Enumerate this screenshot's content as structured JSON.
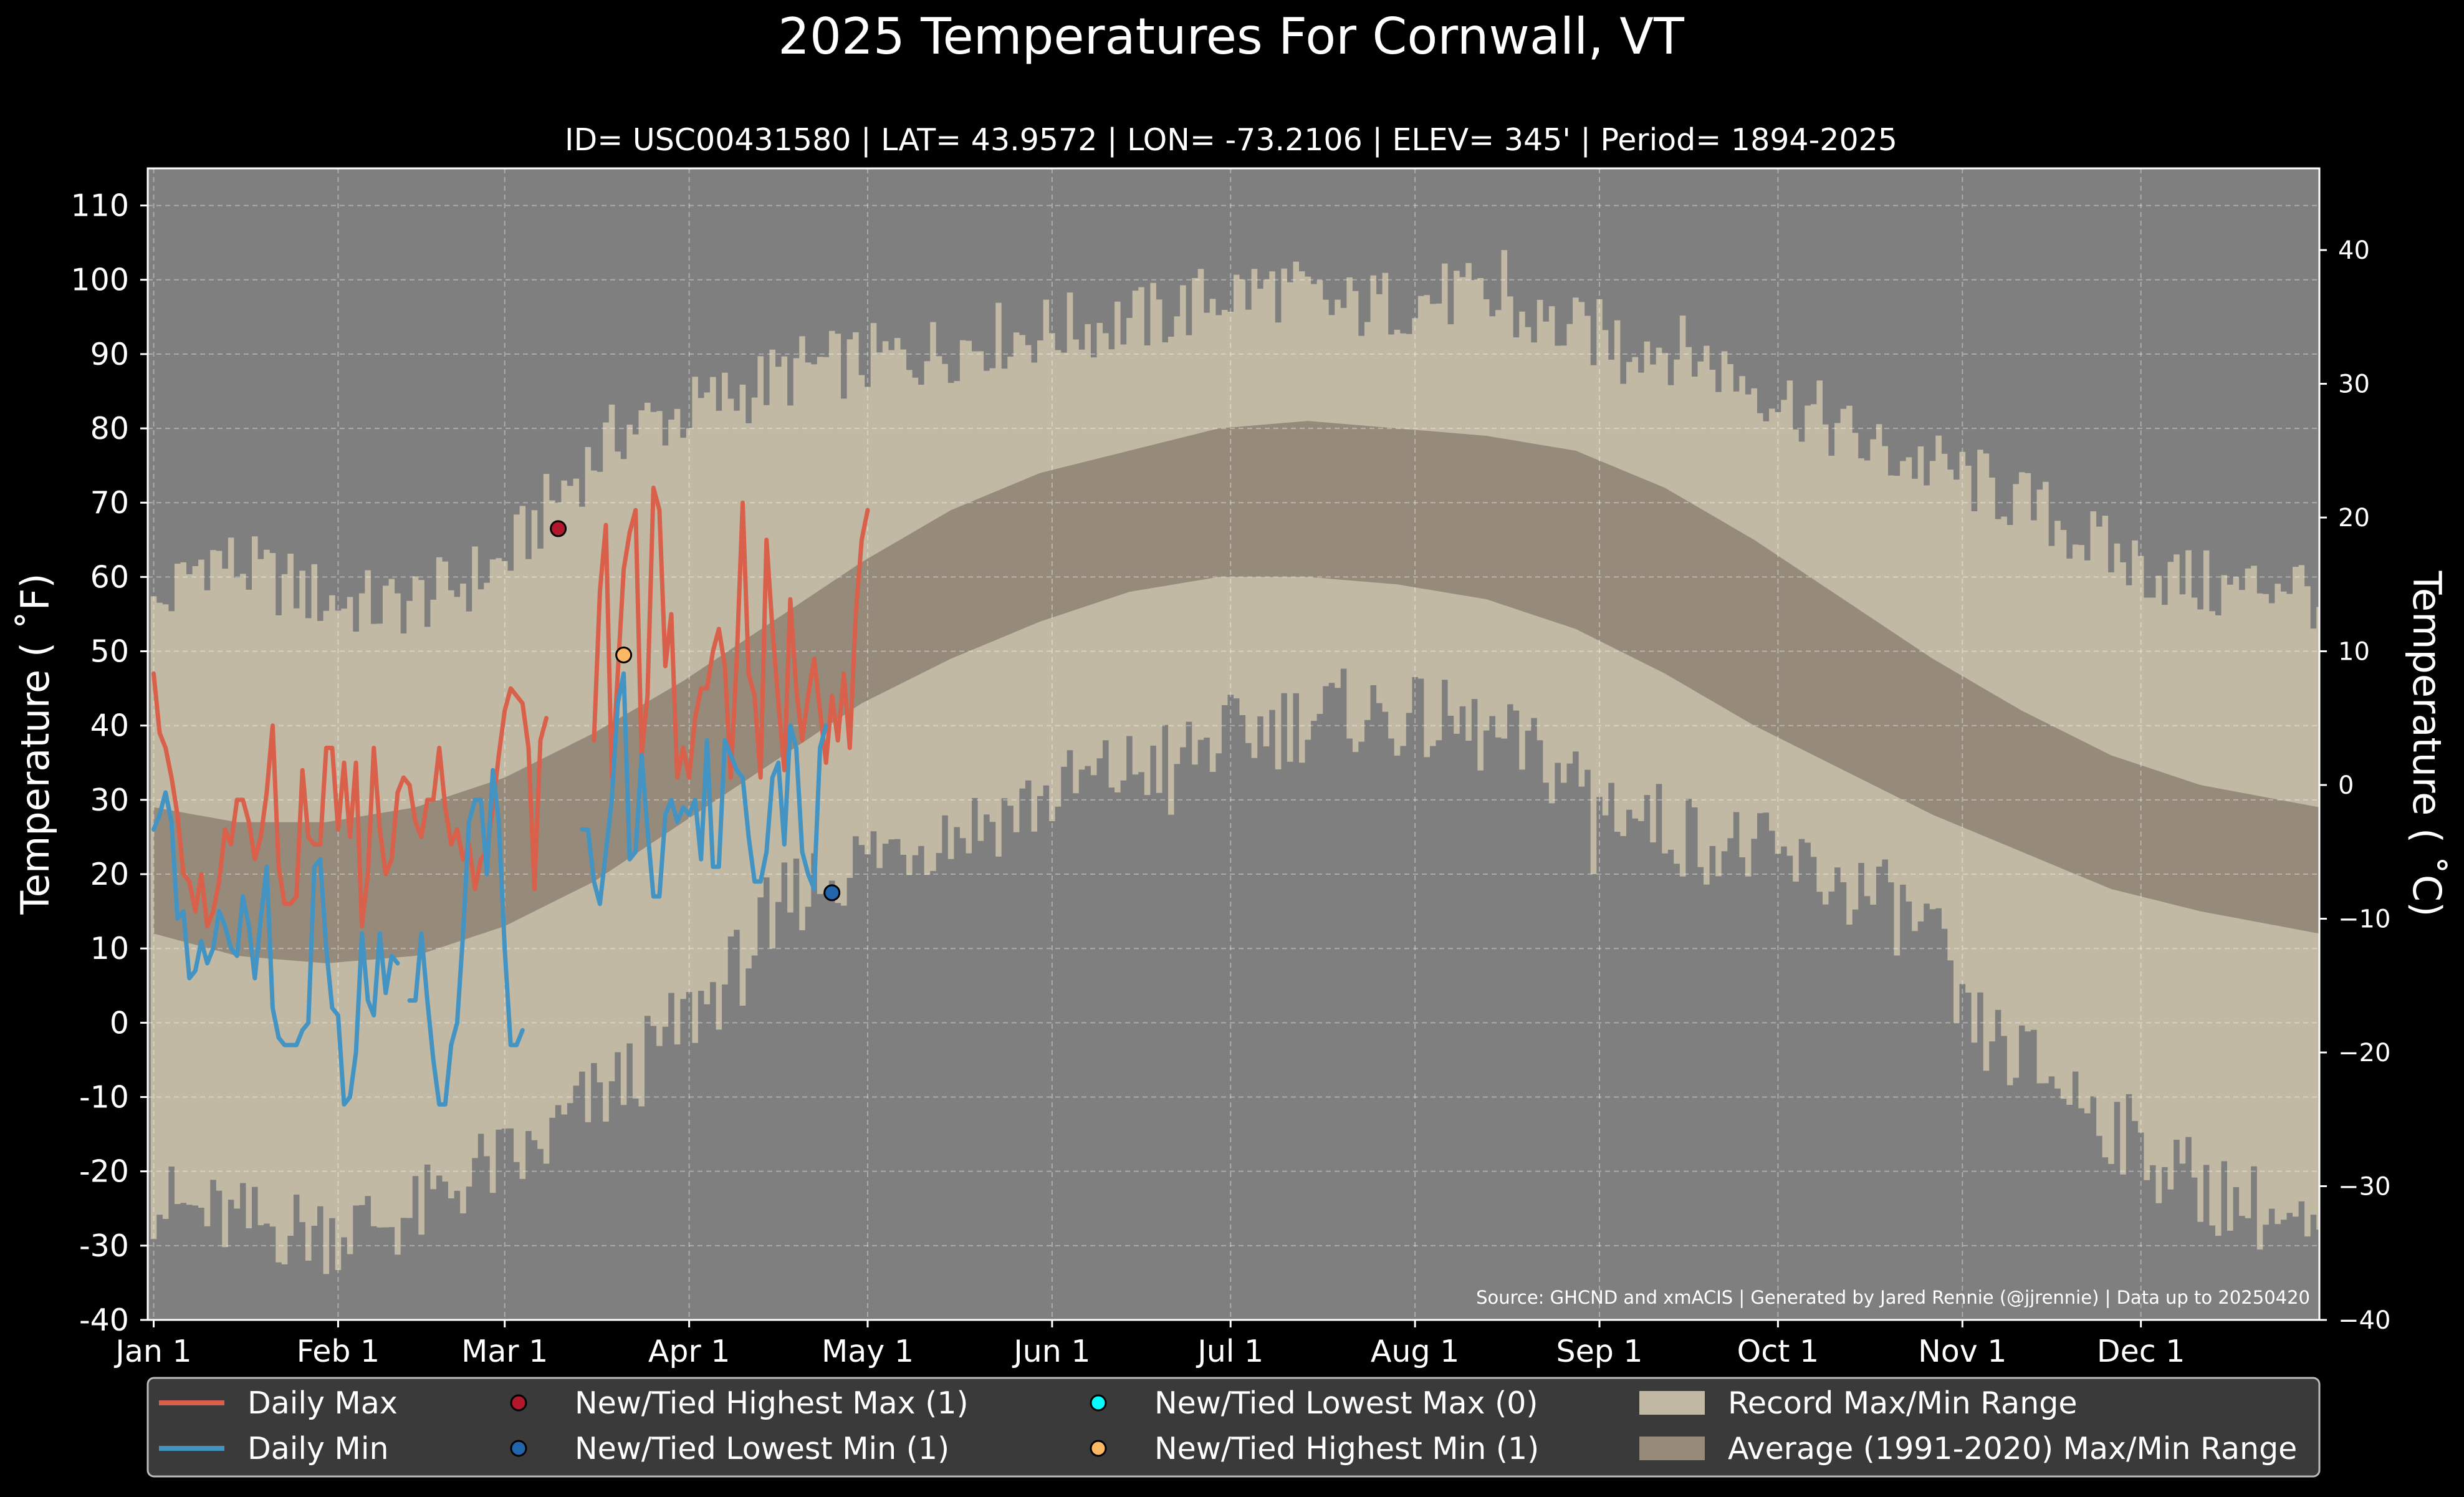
{
  "chart_data": {
    "type": "line",
    "title": "2025 Temperatures For Cornwall, VT",
    "subtitle": "ID= USC00431580 | LAT= 43.9572 | LON= -73.2106 | ELEV= 345' | Period= 1894-2025",
    "ylabel_left": "Temperature ($^\\circ$F)",
    "ylabel_left_display": "Temperature ( ˚F)",
    "ylabel_right_display": "Temperature ( ˚C)",
    "source": "Source: GHCND and xmACIS | Generated by Jared Rennie (@jjrennie) | Data up to 20250420",
    "ylim_f": [
      -40,
      115
    ],
    "yticks_f": [
      -40,
      -30,
      -20,
      -10,
      0,
      10,
      20,
      30,
      40,
      50,
      60,
      70,
      80,
      90,
      100,
      110
    ],
    "yticks_f_labels": [
      "-40",
      "-30",
      "-20",
      "-10",
      "0",
      "10",
      "20",
      "30",
      "40",
      "50",
      "60",
      "70",
      "80",
      "90",
      "100",
      "110"
    ],
    "yticks_c": [
      -40,
      -30,
      -20,
      -10,
      0,
      10,
      20,
      30,
      40
    ],
    "yticks_c_labels": [
      "−40",
      "−30",
      "−20",
      "−10",
      "0",
      "10",
      "20",
      "30",
      "40"
    ],
    "xlim_day": [
      0,
      365
    ],
    "month_ticks": [
      {
        "label": "Jan 1",
        "day": 1
      },
      {
        "label": "Feb 1",
        "day": 32
      },
      {
        "label": "Mar 1",
        "day": 60
      },
      {
        "label": "Apr 1",
        "day": 91
      },
      {
        "label": "May 1",
        "day": 121
      },
      {
        "label": "Jun 1",
        "day": 152
      },
      {
        "label": "Jul 1",
        "day": 182
      },
      {
        "label": "Aug 1",
        "day": 213
      },
      {
        "label": "Sep 1",
        "day": 244
      },
      {
        "label": "Oct 1",
        "day": 274
      },
      {
        "label": "Nov 1",
        "day": 305
      },
      {
        "label": "Dec 1",
        "day": 335
      }
    ],
    "record_max_anchors": [
      [
        1,
        55
      ],
      [
        10,
        63
      ],
      [
        20,
        60
      ],
      [
        30,
        57
      ],
      [
        40,
        56
      ],
      [
        50,
        58
      ],
      [
        60,
        62
      ],
      [
        70,
        72
      ],
      [
        80,
        80
      ],
      [
        90,
        82
      ],
      [
        100,
        85
      ],
      [
        110,
        88
      ],
      [
        120,
        89
      ],
      [
        130,
        90
      ],
      [
        140,
        92
      ],
      [
        150,
        93
      ],
      [
        160,
        94
      ],
      [
        170,
        95
      ],
      [
        180,
        98
      ],
      [
        190,
        99
      ],
      [
        200,
        96
      ],
      [
        210,
        97
      ],
      [
        220,
        98
      ],
      [
        230,
        95
      ],
      [
        240,
        93
      ],
      [
        250,
        92
      ],
      [
        260,
        90
      ],
      [
        270,
        86
      ],
      [
        280,
        82
      ],
      [
        290,
        77
      ],
      [
        300,
        75
      ],
      [
        310,
        72
      ],
      [
        320,
        68
      ],
      [
        330,
        63
      ],
      [
        340,
        60
      ],
      [
        350,
        58
      ],
      [
        360,
        60
      ],
      [
        365,
        57
      ]
    ],
    "record_min_anchors": [
      [
        1,
        -24
      ],
      [
        15,
        -27
      ],
      [
        30,
        -28
      ],
      [
        45,
        -26
      ],
      [
        55,
        -20
      ],
      [
        65,
        -18
      ],
      [
        72,
        -12
      ],
      [
        80,
        -8
      ],
      [
        90,
        0
      ],
      [
        100,
        8
      ],
      [
        105,
        15
      ],
      [
        110,
        18
      ],
      [
        120,
        22
      ],
      [
        130,
        25
      ],
      [
        140,
        27
      ],
      [
        150,
        30
      ],
      [
        160,
        33
      ],
      [
        170,
        35
      ],
      [
        180,
        38
      ],
      [
        190,
        40
      ],
      [
        200,
        42
      ],
      [
        210,
        41
      ],
      [
        220,
        40
      ],
      [
        230,
        37
      ],
      [
        240,
        33
      ],
      [
        250,
        28
      ],
      [
        260,
        25
      ],
      [
        270,
        23
      ],
      [
        280,
        20
      ],
      [
        290,
        17
      ],
      [
        300,
        12
      ],
      [
        305,
        0
      ],
      [
        315,
        -5
      ],
      [
        325,
        -10
      ],
      [
        335,
        -17
      ],
      [
        345,
        -22
      ],
      [
        355,
        -25
      ],
      [
        365,
        -30
      ]
    ],
    "record_notches": [
      [
        228,
        104
      ],
      [
        248,
        86
      ],
      [
        243,
        20
      ],
      [
        105,
        10
      ],
      [
        172,
        28
      ]
    ],
    "normal_max_anchors": [
      [
        1,
        29
      ],
      [
        15,
        27
      ],
      [
        30,
        27
      ],
      [
        45,
        29
      ],
      [
        60,
        33
      ],
      [
        75,
        39
      ],
      [
        90,
        46
      ],
      [
        105,
        54
      ],
      [
        120,
        62
      ],
      [
        135,
        69
      ],
      [
        150,
        74
      ],
      [
        165,
        77
      ],
      [
        180,
        80
      ],
      [
        195,
        81
      ],
      [
        210,
        80
      ],
      [
        225,
        79
      ],
      [
        240,
        77
      ],
      [
        255,
        72
      ],
      [
        270,
        65
      ],
      [
        285,
        57
      ],
      [
        300,
        49
      ],
      [
        315,
        42
      ],
      [
        330,
        36
      ],
      [
        345,
        32
      ],
      [
        365,
        29
      ]
    ],
    "normal_min_anchors": [
      [
        1,
        12
      ],
      [
        15,
        9
      ],
      [
        30,
        8
      ],
      [
        45,
        9
      ],
      [
        60,
        13
      ],
      [
        75,
        19
      ],
      [
        90,
        27
      ],
      [
        105,
        35
      ],
      [
        120,
        43
      ],
      [
        135,
        49
      ],
      [
        150,
        54
      ],
      [
        165,
        58
      ],
      [
        180,
        60
      ],
      [
        195,
        60
      ],
      [
        210,
        59
      ],
      [
        225,
        57
      ],
      [
        240,
        53
      ],
      [
        255,
        47
      ],
      [
        270,
        40
      ],
      [
        285,
        34
      ],
      [
        300,
        28
      ],
      [
        315,
        23
      ],
      [
        330,
        18
      ],
      [
        345,
        15
      ],
      [
        365,
        12
      ]
    ],
    "series": [
      {
        "name": "Daily Max",
        "color": "#d9604a",
        "start_day": 1,
        "values": [
          47,
          39,
          37,
          33,
          28,
          20,
          19,
          15,
          20,
          13,
          15,
          19,
          26,
          24,
          30,
          30,
          27,
          22,
          25,
          31,
          40,
          21,
          16,
          16,
          17,
          34,
          25,
          24,
          24,
          37,
          37,
          26,
          35,
          25,
          35,
          13,
          20,
          37,
          26,
          20,
          22,
          31,
          33,
          32,
          27,
          25,
          30,
          30,
          37,
          29,
          24,
          26,
          22,
          24,
          18,
          22,
          23,
          29,
          36,
          42,
          45,
          44,
          43,
          37,
          18,
          38,
          41,
          null,
          null,
          null,
          null,
          null,
          null,
          null,
          38,
          58,
          67,
          33,
          47,
          61,
          66,
          69,
          36,
          44,
          72,
          69,
          48,
          55,
          33,
          37,
          33,
          41,
          45,
          45,
          50,
          53,
          48,
          33,
          49,
          70,
          47,
          44,
          33,
          65,
          53,
          43,
          34,
          57,
          45,
          38,
          44,
          49,
          42,
          35,
          44,
          38,
          47,
          37,
          55,
          65,
          69
        ]
      },
      {
        "name": "Daily Min",
        "color": "#4393c3",
        "start_day": 1,
        "values": [
          26,
          28,
          31,
          27,
          14,
          15,
          6,
          7,
          11,
          8,
          10,
          15,
          13,
          10,
          9,
          17,
          13,
          6,
          14,
          21,
          2,
          -2,
          -3,
          -3,
          -3,
          -1,
          0,
          21,
          22,
          10,
          2,
          1,
          -11,
          -10,
          -4,
          12,
          3,
          1,
          12,
          4,
          9,
          8,
          null,
          3,
          3,
          12,
          3,
          -5,
          -11,
          -11,
          -3,
          0,
          12,
          27,
          30,
          30,
          20,
          34,
          27,
          10,
          -3,
          -3,
          -1,
          null,
          null,
          null,
          null,
          null,
          null,
          null,
          null,
          null,
          26,
          26,
          19,
          16,
          23,
          30,
          43,
          47,
          22,
          23,
          36,
          26,
          17,
          17,
          28,
          30,
          27,
          29,
          28,
          30,
          22,
          38,
          21,
          21,
          38,
          36,
          34,
          33,
          25,
          19,
          19,
          23,
          33,
          35,
          24,
          40,
          37,
          23,
          20,
          18,
          37,
          40
        ]
      }
    ],
    "record_markers": [
      {
        "name": "New/Tied Highest Max",
        "day": 69,
        "value": 66.5,
        "color": "#b2182b"
      },
      {
        "name": "New/Tied Highest Min",
        "day": 80,
        "value": 49.5,
        "color": "#fdb863"
      },
      {
        "name": "New/Tied Lowest Min",
        "day": 115,
        "value": 17.5,
        "color": "#2166ac"
      }
    ],
    "legend": {
      "placement": "bottom",
      "items": [
        {
          "label": "Daily Max",
          "kind": "line",
          "color": "#d9604a"
        },
        {
          "label": "Daily Min",
          "kind": "line",
          "color": "#4393c3"
        },
        {
          "label": "New/Tied Highest Max (1)",
          "kind": "marker",
          "color": "#b2182b"
        },
        {
          "label": "New/Tied Lowest Min (1)",
          "kind": "marker",
          "color": "#2166ac"
        },
        {
          "label": "New/Tied Lowest Max (0)",
          "kind": "marker",
          "color": "#00ffff"
        },
        {
          "label": "New/Tied Highest Min (1)",
          "kind": "marker",
          "color": "#fdb863"
        },
        {
          "label": "Record Max/Min Range",
          "kind": "patch",
          "color": "#c2b9a4"
        },
        {
          "label": "Average (1991-2020) Max/Min Range",
          "kind": "patch",
          "color": "#968b7b"
        }
      ]
    },
    "colors": {
      "background": "#000000",
      "plot_bg": "#7f7f7f",
      "record_band": "#c2b9a4",
      "normal_band": "#968b7b",
      "text": "#ffffff"
    },
    "grid": true
  }
}
